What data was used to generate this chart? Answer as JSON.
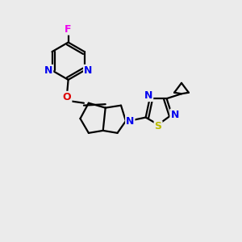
{
  "bg_color": "#ebebeb",
  "atom_colors": {
    "C": "#000000",
    "N": "#0000ee",
    "O": "#dd0000",
    "F": "#ee00ee",
    "S": "#bbbb00"
  },
  "bond_color": "#000000",
  "bond_width": 1.6,
  "figsize": [
    3.0,
    3.0
  ],
  "dpi": 100
}
